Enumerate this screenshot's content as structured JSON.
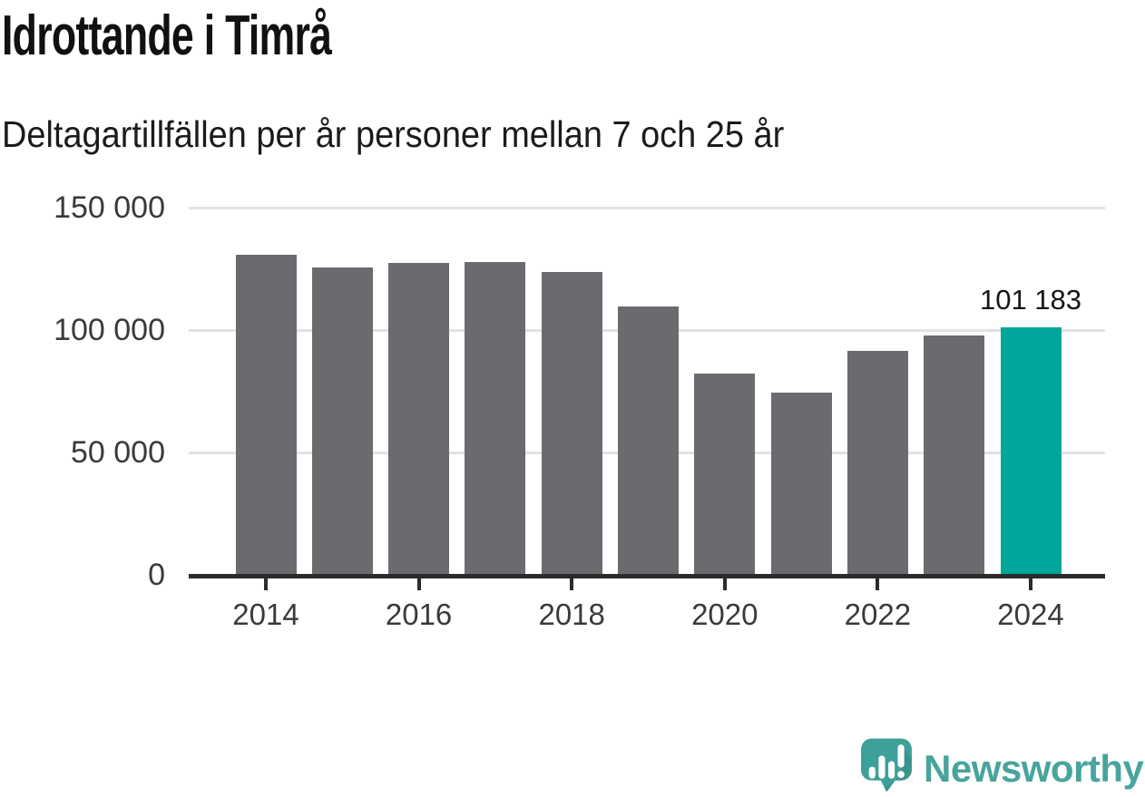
{
  "header": {
    "title": "Idrottande i Timrå",
    "subtitle": "Deltagartillfällen per år personer mellan 7 och 25 år"
  },
  "chart_data": {
    "type": "bar",
    "title": "Idrottande i Timrå",
    "subtitle": "Deltagartillfällen per år personer mellan 7 och 25 år",
    "categories": [
      2014,
      2015,
      2016,
      2017,
      2018,
      2019,
      2020,
      2021,
      2022,
      2023,
      2024
    ],
    "values": [
      130800,
      125600,
      127300,
      127700,
      123700,
      109700,
      82200,
      74600,
      91500,
      97900,
      101183
    ],
    "highlight_index": 10,
    "highlight_label": "101 183",
    "ylim": [
      0,
      150000
    ],
    "grid": "horizontal",
    "yticks": [
      {
        "value": 0,
        "label": "0"
      },
      {
        "value": 50000,
        "label": "50 000"
      },
      {
        "value": 100000,
        "label": "100 000"
      },
      {
        "value": 150000,
        "label": "150 000"
      }
    ],
    "xticks": [
      "2014",
      "2016",
      "2018",
      "2020",
      "2022",
      "2024"
    ],
    "colors": {
      "bar": "#6c6a6f",
      "highlight": "#00a69b",
      "gridline": "#e2e2e2",
      "axis": "#2b2b2b",
      "tick_text": "#3a3a3a"
    }
  },
  "footer": {
    "brand": "Newsworthy",
    "brand_color": "#48a49c",
    "logo_icon": "newsworthy-bubble-chart-icon",
    "logo_icon_color": "#3da199"
  }
}
